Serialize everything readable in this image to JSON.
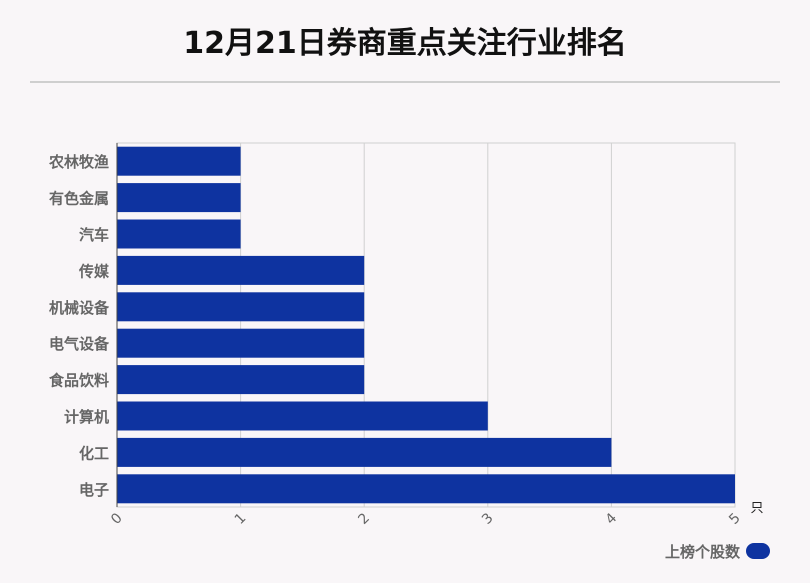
{
  "chart_data": {
    "type": "bar",
    "orientation": "horizontal",
    "title": "12月21日券商重点关注行业排名",
    "categories": [
      "农林牧渔",
      "有色金属",
      "汽车",
      "传媒",
      "机械设备",
      "电气设备",
      "食品饮料",
      "计算机",
      "化工",
      "电子"
    ],
    "series": [
      {
        "name": "上榜个股数",
        "values": [
          1,
          1,
          1,
          2,
          2,
          2,
          2,
          3,
          4,
          5
        ]
      }
    ],
    "xlabel": "只",
    "ylabel": "",
    "xlim": [
      0,
      5
    ],
    "xticks": [
      "0",
      "1",
      "2",
      "3",
      "4",
      "5"
    ],
    "grid": true,
    "legend": "bottom-right",
    "bar_color": "#0e33a0"
  }
}
